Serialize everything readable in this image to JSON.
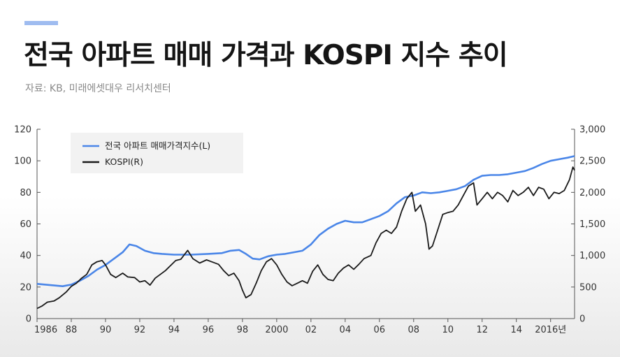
{
  "header": {
    "title": "전국 아파트 매매 가격과 KOSPI 지수 추이",
    "source": "자료: KB, 미래에셋대우 리서치센터",
    "accent_color": "#9fbcf0"
  },
  "chart_data": {
    "type": "line",
    "title": "전국 아파트 매매 가격과 KOSPI 지수 추이",
    "x_range": [
      1986.0,
      2017.4
    ],
    "x_ticks": [
      "1986",
      "88",
      "90",
      "92",
      "94",
      "96",
      "98",
      "2000",
      "02",
      "04",
      "06",
      "08",
      "10",
      "12",
      "14",
      "2016년"
    ],
    "y_left": {
      "range": [
        0,
        120
      ],
      "ticks": [
        "0",
        "20",
        "40",
        "60",
        "80",
        "100",
        "120"
      ]
    },
    "y_right": {
      "range": [
        0,
        3000
      ],
      "ticks": [
        "0",
        "500",
        "1,000",
        "1,500",
        "2,000",
        "2,500",
        "3,000"
      ]
    },
    "legend": {
      "position": "top-left",
      "items": [
        "전국 아파트 매매가격지수(L)",
        "KOSPI(R)"
      ]
    },
    "series": [
      {
        "name": "전국 아파트 매매가격지수(L)",
        "axis": "left",
        "color": "#4a86e8",
        "points": [
          [
            1986.0,
            22
          ],
          [
            1986.5,
            21.5
          ],
          [
            1987.0,
            21
          ],
          [
            1987.5,
            20.5
          ],
          [
            1988.0,
            21.5
          ],
          [
            1988.5,
            24
          ],
          [
            1989.0,
            27
          ],
          [
            1989.5,
            31
          ],
          [
            1990.0,
            34
          ],
          [
            1990.5,
            38
          ],
          [
            1991.0,
            42
          ],
          [
            1991.4,
            47
          ],
          [
            1991.8,
            46
          ],
          [
            1992.3,
            43
          ],
          [
            1992.8,
            41.5
          ],
          [
            1993.3,
            41
          ],
          [
            1994.0,
            40.5
          ],
          [
            1995.0,
            40.5
          ],
          [
            1996.0,
            41
          ],
          [
            1996.8,
            41.5
          ],
          [
            1997.3,
            43
          ],
          [
            1997.8,
            43.5
          ],
          [
            1998.2,
            41
          ],
          [
            1998.6,
            38
          ],
          [
            1999.0,
            37.5
          ],
          [
            1999.5,
            39.5
          ],
          [
            2000.0,
            40.5
          ],
          [
            2000.5,
            41
          ],
          [
            2001.0,
            42
          ],
          [
            2001.5,
            43
          ],
          [
            2002.0,
            47
          ],
          [
            2002.5,
            53
          ],
          [
            2003.0,
            57
          ],
          [
            2003.5,
            60
          ],
          [
            2004.0,
            62
          ],
          [
            2004.5,
            61
          ],
          [
            2005.0,
            61
          ],
          [
            2005.5,
            63
          ],
          [
            2006.0,
            65
          ],
          [
            2006.5,
            68
          ],
          [
            2007.0,
            73
          ],
          [
            2007.5,
            77
          ],
          [
            2008.0,
            78
          ],
          [
            2008.5,
            80
          ],
          [
            2009.0,
            79.5
          ],
          [
            2009.5,
            80
          ],
          [
            2010.0,
            81
          ],
          [
            2010.5,
            82
          ],
          [
            2011.0,
            84
          ],
          [
            2011.5,
            88
          ],
          [
            2012.0,
            90.5
          ],
          [
            2012.5,
            91
          ],
          [
            2013.0,
            91
          ],
          [
            2013.5,
            91.5
          ],
          [
            2014.0,
            92.5
          ],
          [
            2014.5,
            93.5
          ],
          [
            2015.0,
            95.5
          ],
          [
            2015.5,
            98
          ],
          [
            2016.0,
            100
          ],
          [
            2016.5,
            101
          ],
          [
            2017.0,
            102
          ],
          [
            2017.4,
            103
          ]
        ]
      },
      {
        "name": "KOSPI(R)",
        "axis": "right",
        "color": "#1a1a1a",
        "points": [
          [
            1986.0,
            160
          ],
          [
            1986.3,
            200
          ],
          [
            1986.6,
            260
          ],
          [
            1987.0,
            280
          ],
          [
            1987.3,
            330
          ],
          [
            1987.7,
            420
          ],
          [
            1988.0,
            510
          ],
          [
            1988.3,
            560
          ],
          [
            1988.6,
            640
          ],
          [
            1988.9,
            700
          ],
          [
            1989.2,
            850
          ],
          [
            1989.5,
            900
          ],
          [
            1989.8,
            920
          ],
          [
            1990.0,
            850
          ],
          [
            1990.3,
            700
          ],
          [
            1990.6,
            650
          ],
          [
            1991.0,
            720
          ],
          [
            1991.3,
            660
          ],
          [
            1991.7,
            650
          ],
          [
            1992.0,
            580
          ],
          [
            1992.3,
            600
          ],
          [
            1992.6,
            530
          ],
          [
            1992.9,
            640
          ],
          [
            1993.2,
            700
          ],
          [
            1993.5,
            760
          ],
          [
            1993.8,
            840
          ],
          [
            1994.1,
            920
          ],
          [
            1994.4,
            940
          ],
          [
            1994.8,
            1080
          ],
          [
            1995.1,
            950
          ],
          [
            1995.5,
            880
          ],
          [
            1995.9,
            930
          ],
          [
            1996.2,
            900
          ],
          [
            1996.6,
            860
          ],
          [
            1996.9,
            760
          ],
          [
            1997.2,
            680
          ],
          [
            1997.5,
            720
          ],
          [
            1997.8,
            600
          ],
          [
            1998.0,
            450
          ],
          [
            1998.2,
            330
          ],
          [
            1998.5,
            380
          ],
          [
            1998.8,
            560
          ],
          [
            1999.1,
            760
          ],
          [
            1999.4,
            900
          ],
          [
            1999.7,
            950
          ],
          [
            2000.0,
            850
          ],
          [
            2000.3,
            700
          ],
          [
            2000.6,
            580
          ],
          [
            2000.9,
            520
          ],
          [
            2001.2,
            560
          ],
          [
            2001.5,
            600
          ],
          [
            2001.8,
            560
          ],
          [
            2002.1,
            750
          ],
          [
            2002.4,
            850
          ],
          [
            2002.7,
            700
          ],
          [
            2003.0,
            620
          ],
          [
            2003.3,
            600
          ],
          [
            2003.6,
            720
          ],
          [
            2003.9,
            800
          ],
          [
            2004.2,
            850
          ],
          [
            2004.5,
            780
          ],
          [
            2004.8,
            860
          ],
          [
            2005.1,
            950
          ],
          [
            2005.5,
            1000
          ],
          [
            2005.8,
            1200
          ],
          [
            2006.1,
            1350
          ],
          [
            2006.4,
            1400
          ],
          [
            2006.7,
            1350
          ],
          [
            2007.0,
            1450
          ],
          [
            2007.3,
            1700
          ],
          [
            2007.6,
            1900
          ],
          [
            2007.9,
            2000
          ],
          [
            2008.1,
            1700
          ],
          [
            2008.4,
            1800
          ],
          [
            2008.7,
            1500
          ],
          [
            2008.9,
            1100
          ],
          [
            2009.1,
            1150
          ],
          [
            2009.4,
            1400
          ],
          [
            2009.7,
            1650
          ],
          [
            2010.0,
            1680
          ],
          [
            2010.3,
            1700
          ],
          [
            2010.6,
            1800
          ],
          [
            2010.9,
            1950
          ],
          [
            2011.2,
            2100
          ],
          [
            2011.5,
            2150
          ],
          [
            2011.7,
            1800
          ],
          [
            2012.0,
            1900
          ],
          [
            2012.3,
            2000
          ],
          [
            2012.6,
            1900
          ],
          [
            2012.9,
            2000
          ],
          [
            2013.2,
            1950
          ],
          [
            2013.5,
            1850
          ],
          [
            2013.8,
            2030
          ],
          [
            2014.1,
            1950
          ],
          [
            2014.4,
            2000
          ],
          [
            2014.7,
            2080
          ],
          [
            2015.0,
            1950
          ],
          [
            2015.3,
            2080
          ],
          [
            2015.6,
            2050
          ],
          [
            2015.9,
            1900
          ],
          [
            2016.2,
            2000
          ],
          [
            2016.5,
            1980
          ],
          [
            2016.8,
            2030
          ],
          [
            2017.1,
            2200
          ],
          [
            2017.3,
            2400
          ],
          [
            2017.4,
            2350
          ]
        ]
      }
    ]
  }
}
